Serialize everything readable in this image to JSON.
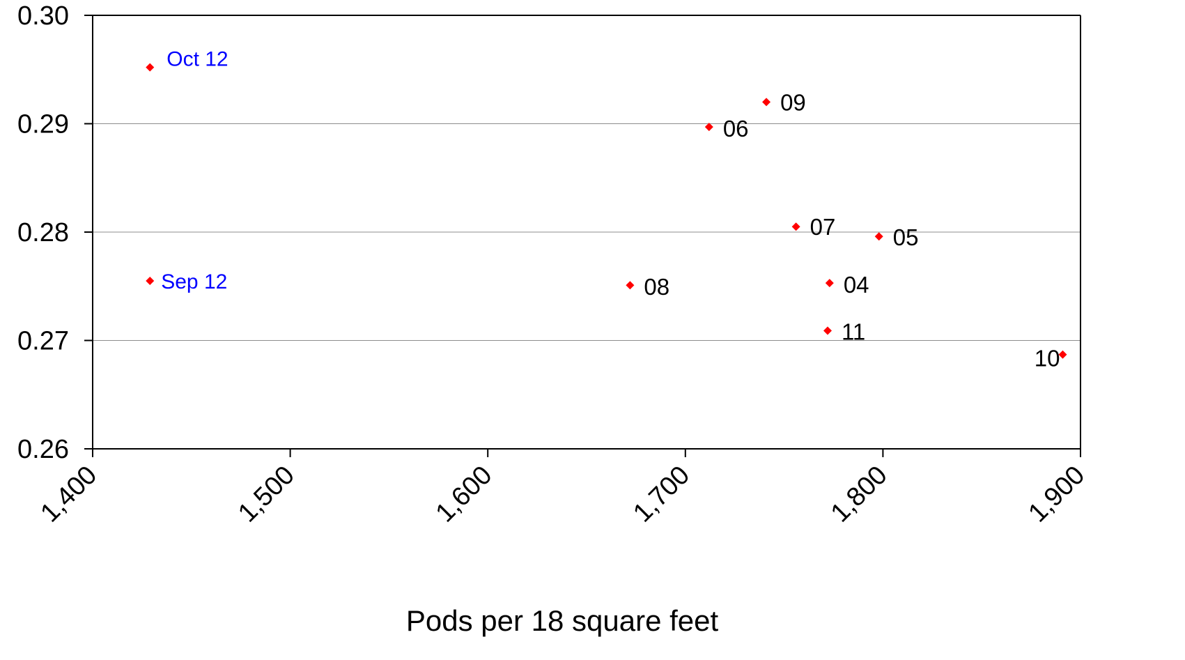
{
  "chart_data": {
    "type": "scatter",
    "title": "",
    "xlabel": "Pods per 18 square feet",
    "ylabel": "",
    "xlim": [
      1400,
      1900
    ],
    "ylim": [
      0.26,
      0.3
    ],
    "x_ticks": [
      1400,
      1500,
      1600,
      1700,
      1800,
      1900
    ],
    "x_tick_labels": [
      "1,400",
      "1,500",
      "1,600",
      "1,700",
      "1,800",
      "1,900"
    ],
    "y_ticks": [
      0.26,
      0.27,
      0.28,
      0.29,
      0.3
    ],
    "y_tick_labels": [
      "0.26",
      "0.27",
      "0.28",
      "0.29",
      "0.30"
    ],
    "y_gridlines": true,
    "marker_color": "#ff0000",
    "label_color": "#000000",
    "highlight_label_color": "#0000ff",
    "points": [
      {
        "label": "Oct 12",
        "x": 1429,
        "y": 0.2952,
        "highlight": true
      },
      {
        "label": "Sep 12",
        "x": 1429,
        "y": 0.2755,
        "highlight": true
      },
      {
        "label": "09",
        "x": 1741,
        "y": 0.292,
        "highlight": false
      },
      {
        "label": "06",
        "x": 1712,
        "y": 0.2897,
        "highlight": false
      },
      {
        "label": "07",
        "x": 1756,
        "y": 0.2805,
        "highlight": false
      },
      {
        "label": "05",
        "x": 1798,
        "y": 0.2796,
        "highlight": false
      },
      {
        "label": "08",
        "x": 1672,
        "y": 0.2751,
        "highlight": false
      },
      {
        "label": "04",
        "x": 1773,
        "y": 0.2753,
        "highlight": false
      },
      {
        "label": "11",
        "x": 1772,
        "y": 0.2709,
        "highlight": false
      },
      {
        "label": "10",
        "x": 1891,
        "y": 0.2687,
        "highlight": false
      }
    ]
  }
}
